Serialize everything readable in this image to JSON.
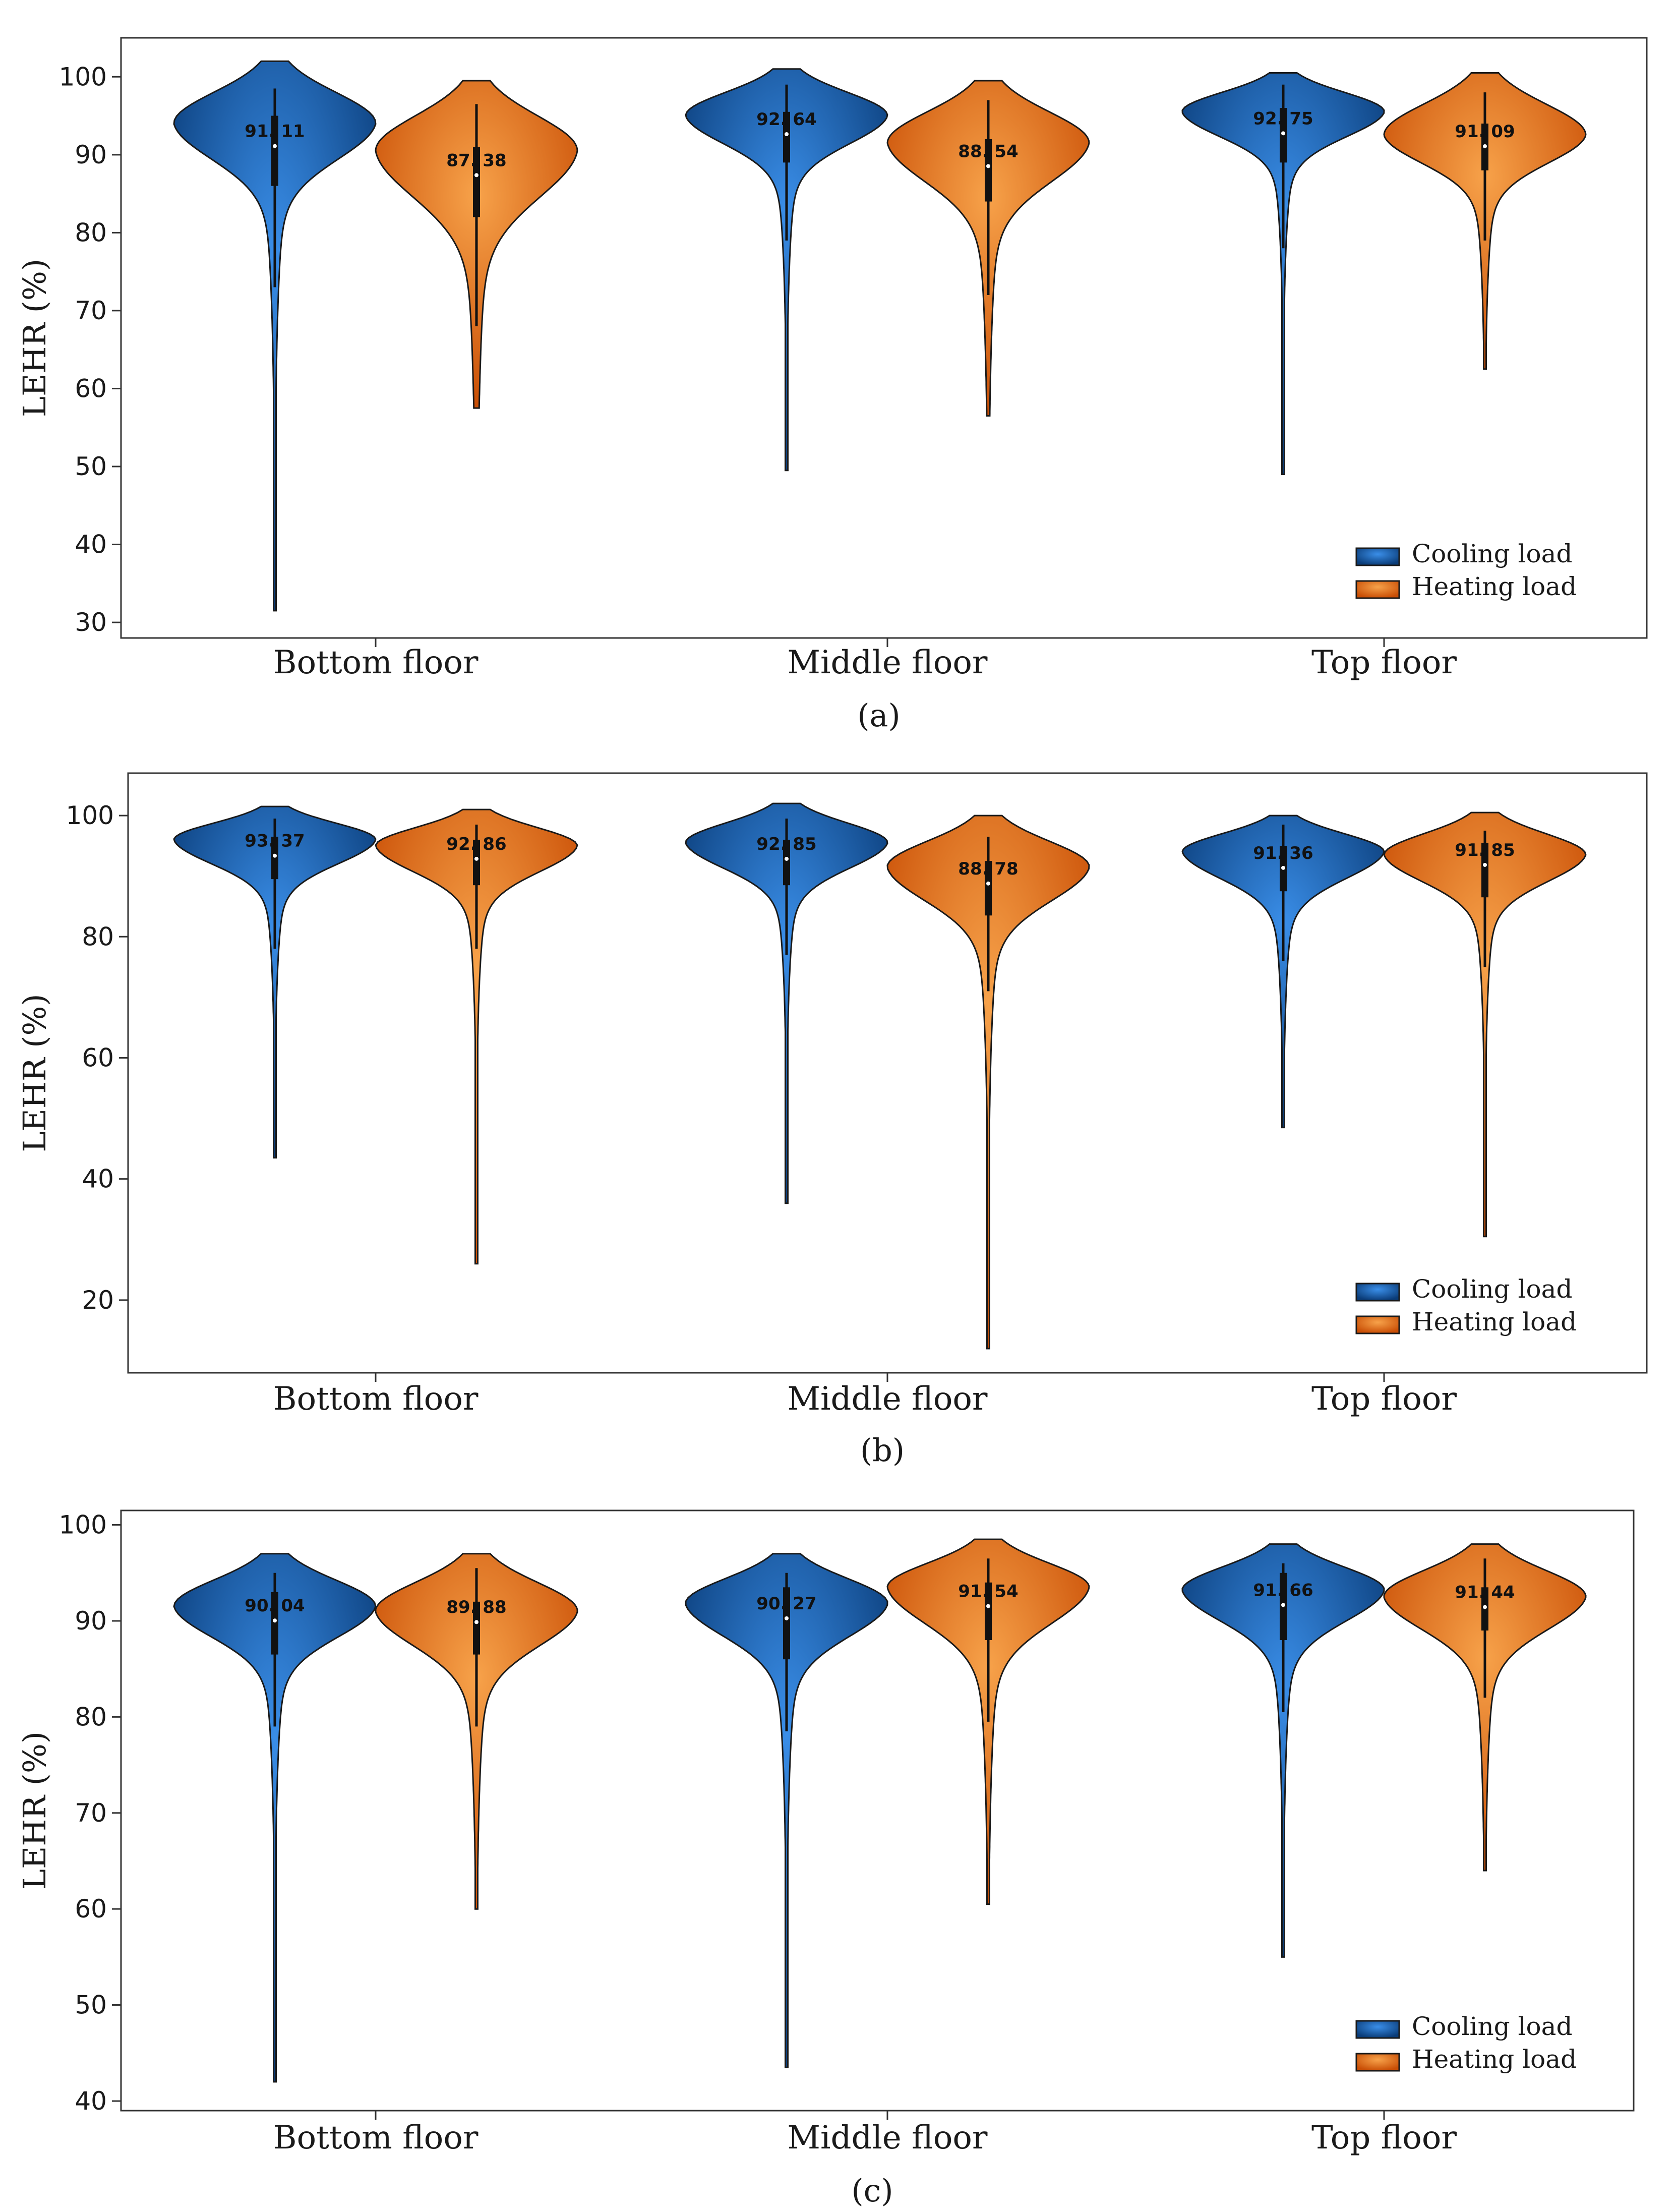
{
  "legend": {
    "cooling_label": "Cooling load",
    "heating_label": "Heating load"
  },
  "colors": {
    "cooling_light": "#3a8ee8",
    "cooling_dark": "#0a3c78",
    "heating_light": "#f7a24a",
    "heating_dark": "#c94e05",
    "outline": "#1a1a1a",
    "box": "#111111"
  },
  "chart_data": [
    {
      "type": "violin",
      "panel_label": "(a)",
      "ylabel": "LEHR (%)",
      "ylim": [
        28,
        105
      ],
      "yticks": [
        30,
        40,
        50,
        60,
        70,
        80,
        90,
        100
      ],
      "categories": [
        "Bottom floor",
        "Middle floor",
        "Top floor"
      ],
      "series": [
        {
          "name": "Cooling load",
          "median_labels": [
            "91. 11",
            "92. 64",
            "92. 75"
          ],
          "violins": [
            {
              "min": 31.5,
              "max": 102,
              "median": 91.11,
              "q1": 86,
              "q3": 95,
              "whisker_lo": 73,
              "whisker_hi": 98.5,
              "mode": 94,
              "spread": 4.6
            },
            {
              "min": 49.5,
              "max": 101,
              "median": 92.64,
              "q1": 89,
              "q3": 95.5,
              "whisker_lo": 79,
              "whisker_hi": 99,
              "mode": 95,
              "spread": 3.6
            },
            {
              "min": 49,
              "max": 100.5,
              "median": 92.75,
              "q1": 89,
              "q3": 96,
              "whisker_lo": 78,
              "whisker_hi": 99,
              "mode": 95.5,
              "spread": 3.2
            }
          ]
        },
        {
          "name": "Heating load",
          "median_labels": [
            "87. 38",
            "88. 54",
            "91. 09"
          ],
          "violins": [
            {
              "min": 57.5,
              "max": 99.5,
              "median": 87.38,
              "q1": 82,
              "q3": 91,
              "whisker_lo": 68,
              "whisker_hi": 96.5,
              "mode": 90.5,
              "spread": 6
            },
            {
              "min": 56.5,
              "max": 99.5,
              "median": 88.54,
              "q1": 84,
              "q3": 92,
              "whisker_lo": 72,
              "whisker_hi": 97,
              "mode": 91.5,
              "spread": 5
            },
            {
              "min": 62.5,
              "max": 100.5,
              "median": 91.09,
              "q1": 88,
              "q3": 94,
              "whisker_lo": 79,
              "whisker_hi": 98,
              "mode": 92.5,
              "spread": 3.6
            }
          ]
        }
      ]
    },
    {
      "type": "violin",
      "panel_label": "(b)",
      "ylabel": "LEHR (%)",
      "ylim": [
        8,
        107
      ],
      "yticks": [
        20,
        40,
        60,
        80,
        100
      ],
      "categories": [
        "Bottom floor",
        "Middle floor",
        "Top floor"
      ],
      "series": [
        {
          "name": "Cooling load",
          "median_labels": [
            "93. 37",
            "92. 85",
            "91. 36"
          ],
          "violins": [
            {
              "min": 43.5,
              "max": 101.5,
              "median": 93.37,
              "q1": 89.5,
              "q3": 96.5,
              "whisker_lo": 78,
              "whisker_hi": 99.5,
              "mode": 96,
              "spread": 4
            },
            {
              "min": 36,
              "max": 102,
              "median": 92.85,
              "q1": 88.5,
              "q3": 96,
              "whisker_lo": 77,
              "whisker_hi": 99.5,
              "mode": 95.5,
              "spread": 4.2
            },
            {
              "min": 48.5,
              "max": 100,
              "median": 91.36,
              "q1": 87.5,
              "q3": 95,
              "whisker_lo": 76,
              "whisker_hi": 98.5,
              "mode": 94,
              "spread": 4.4
            }
          ]
        },
        {
          "name": "Heating load",
          "median_labels": [
            "92. 86",
            "88. 78",
            "91. 85"
          ],
          "violins": [
            {
              "min": 26,
              "max": 101,
              "median": 92.86,
              "q1": 88.5,
              "q3": 96,
              "whisker_lo": 78,
              "whisker_hi": 98.5,
              "mode": 95,
              "spread": 4.3
            },
            {
              "min": 12,
              "max": 100,
              "median": 88.78,
              "q1": 83.5,
              "q3": 92.5,
              "whisker_lo": 71,
              "whisker_hi": 96.5,
              "mode": 91.5,
              "spread": 5.6
            },
            {
              "min": 30.5,
              "max": 100.5,
              "median": 91.85,
              "q1": 86.5,
              "q3": 95.5,
              "whisker_lo": 75,
              "whisker_hi": 97.5,
              "mode": 93.5,
              "spread": 4.4
            }
          ]
        }
      ]
    },
    {
      "type": "violin",
      "panel_label": "(c)",
      "ylabel": "LEHR (%)",
      "ylim": [
        39,
        101.5
      ],
      "yticks": [
        40,
        50,
        60,
        70,
        80,
        90,
        100
      ],
      "categories": [
        "Bottom floor",
        "Middle floor",
        "Top floor"
      ],
      "series": [
        {
          "name": "Cooling load",
          "median_labels": [
            "90. 04",
            "90. 27",
            "91. 66"
          ],
          "violins": [
            {
              "min": 42,
              "max": 97,
              "median": 90.04,
              "q1": 86.5,
              "q3": 93,
              "whisker_lo": 79,
              "whisker_hi": 95,
              "mode": 91.5,
              "spread": 3.2
            },
            {
              "min": 43.5,
              "max": 97,
              "median": 90.27,
              "q1": 86,
              "q3": 93.5,
              "whisker_lo": 78.5,
              "whisker_hi": 95,
              "mode": 91.8,
              "spread": 3.4
            },
            {
              "min": 55,
              "max": 98,
              "median": 91.66,
              "q1": 88,
              "q3": 95,
              "whisker_lo": 80.5,
              "whisker_hi": 96,
              "mode": 93.2,
              "spread": 3.2
            }
          ]
        },
        {
          "name": "Heating load",
          "median_labels": [
            "89. 88",
            "91. 54",
            "91. 44"
          ],
          "violins": [
            {
              "min": 60,
              "max": 97,
              "median": 89.88,
              "q1": 86.5,
              "q3": 92,
              "whisker_lo": 79,
              "whisker_hi": 95.5,
              "mode": 91,
              "spread": 3.6
            },
            {
              "min": 60.5,
              "max": 98.5,
              "median": 91.54,
              "q1": 88,
              "q3": 94,
              "whisker_lo": 79.5,
              "whisker_hi": 96.5,
              "mode": 93.5,
              "spread": 3.8
            },
            {
              "min": 64,
              "max": 98,
              "median": 91.44,
              "q1": 89,
              "q3": 93.5,
              "whisker_lo": 82,
              "whisker_hi": 96.5,
              "mode": 92.5,
              "spread": 3.4
            }
          ]
        }
      ]
    }
  ]
}
